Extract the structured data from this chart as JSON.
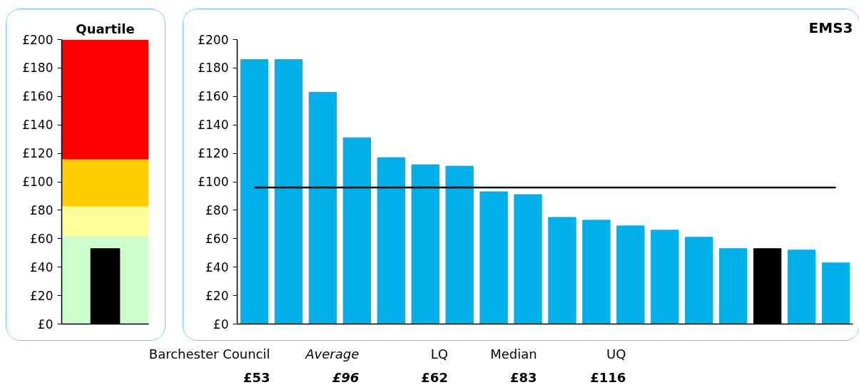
{
  "chart_data": [
    {
      "type": "bar",
      "title": "Quartile",
      "categories": [
        null
      ],
      "values": [
        53
      ],
      "colors": [
        "#000000"
      ],
      "ylim": [
        0,
        200
      ],
      "yticks": [
        {
          "value": 0,
          "label": "£0"
        },
        {
          "value": 20,
          "label": "£20"
        },
        {
          "value": 40,
          "label": "£40"
        },
        {
          "value": 60,
          "label": "£60"
        },
        {
          "value": 80,
          "label": "£80"
        },
        {
          "value": 100,
          "label": "£100"
        },
        {
          "value": 120,
          "label": "£120"
        },
        {
          "value": 140,
          "label": "£140"
        },
        {
          "value": 160,
          "label": "£160"
        },
        {
          "value": 180,
          "label": "£180"
        },
        {
          "value": 200,
          "label": "£200"
        }
      ],
      "bands": [
        {
          "axis": "y",
          "from": 0,
          "to": 62,
          "color": "#ccffcc"
        },
        {
          "axis": "y",
          "from": 62,
          "to": 83,
          "color": "#ffff99"
        },
        {
          "axis": "y",
          "from": 83,
          "to": 116,
          "color": "#ffcc00"
        },
        {
          "axis": "y",
          "from": 116,
          "to": 200,
          "color": "#ff0000"
        }
      ],
      "tick_labels": "y"
    },
    {
      "type": "bar",
      "title": "EMS3",
      "categories": [
        null,
        null,
        null,
        null,
        null,
        null,
        null,
        null,
        null,
        null,
        null,
        null,
        null,
        null,
        null,
        null,
        null,
        null
      ],
      "values": [
        186,
        186,
        163,
        131,
        117,
        112,
        111,
        93,
        91,
        75,
        73,
        69,
        66,
        61,
        53,
        53,
        52,
        43
      ],
      "colors": [
        "#00b0e8",
        "#00b0e8",
        "#00b0e8",
        "#00b0e8",
        "#00b0e8",
        "#00b0e8",
        "#00b0e8",
        "#00b0e8",
        "#00b0e8",
        "#00b0e8",
        "#00b0e8",
        "#00b0e8",
        "#00b0e8",
        "#00b0e8",
        "#00b0e8",
        "#000000",
        "#00b0e8",
        "#00b0e8"
      ],
      "ylim": [
        0,
        200
      ],
      "yticks": [
        {
          "value": 0,
          "label": "£0"
        },
        {
          "value": 20,
          "label": "£20"
        },
        {
          "value": 40,
          "label": "£40"
        },
        {
          "value": 60,
          "label": "£60"
        },
        {
          "value": 80,
          "label": "£80"
        },
        {
          "value": 100,
          "label": "£100"
        },
        {
          "value": 120,
          "label": "£120"
        },
        {
          "value": 140,
          "label": "£140"
        },
        {
          "value": 160,
          "label": "£160"
        },
        {
          "value": 180,
          "label": "£180"
        },
        {
          "value": 200,
          "label": "£200"
        }
      ],
      "ref_lines": [
        {
          "axis": "y",
          "value": 96,
          "color": "#000000"
        }
      ],
      "annotations": [
        "Barchester Council",
        "£53",
        "Average",
        "£96",
        "LQ",
        "£62",
        "Median",
        "£83",
        "UQ",
        "£116"
      ],
      "tick_labels": "y"
    }
  ]
}
